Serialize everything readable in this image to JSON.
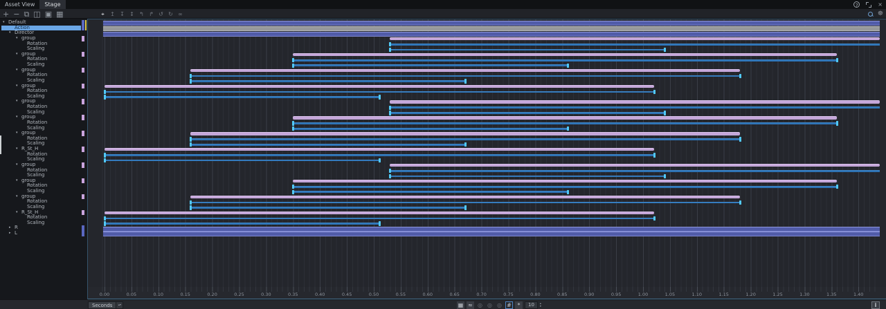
{
  "tabs": [
    {
      "label": "Asset View",
      "active": false
    },
    {
      "label": "Stage",
      "active": true
    }
  ],
  "window_controls": {
    "help": "?",
    "close": "×"
  },
  "left_toolbar": [
    {
      "name": "add-icon",
      "glyph": "+"
    },
    {
      "name": "remove-icon",
      "glyph": "−"
    },
    {
      "name": "copy-icon",
      "glyph": "⧉"
    },
    {
      "name": "paste-icon",
      "glyph": "◫"
    },
    {
      "name": "snapshot-icon",
      "glyph": "▣"
    },
    {
      "name": "film-icon",
      "glyph": "▦"
    }
  ],
  "timeline_toolbar": [
    {
      "name": "playhead-icon",
      "glyph": "⌖",
      "hot": true
    },
    {
      "name": "keyframe-insert-icon",
      "glyph": "↥"
    },
    {
      "name": "keyframe-remove-icon",
      "glyph": "↧"
    },
    {
      "name": "keyframe-move-icon",
      "glyph": "↕"
    },
    {
      "name": "shift-left-icon",
      "glyph": "↰"
    },
    {
      "name": "shift-right-icon",
      "glyph": "↱"
    },
    {
      "name": "undo-icon",
      "glyph": "↺"
    },
    {
      "name": "redo-icon",
      "glyph": "↻"
    },
    {
      "name": "loop-icon",
      "glyph": "∞"
    }
  ],
  "right_toolbar": {
    "settings_glyph": "☸"
  },
  "bottom_bar": {
    "unit_label": "Seconds",
    "fps_value": "10",
    "info_label": "i",
    "icons": [
      {
        "name": "dopesheet-icon",
        "glyph": "▦",
        "boxed": true
      },
      {
        "name": "curve-editor-icon",
        "glyph": "≈",
        "boxed": true
      },
      {
        "name": "onion-skin-1-icon",
        "glyph": "◎"
      },
      {
        "name": "onion-skin-2-icon",
        "glyph": "◎"
      },
      {
        "name": "onion-skin-3-icon",
        "glyph": "◎"
      },
      {
        "name": "snap-grid-icon",
        "glyph": "#",
        "active": true
      },
      {
        "name": "snap-magnet-icon",
        "glyph": "*",
        "boxed": true
      }
    ]
  },
  "ruler_labels": [
    "0.00",
    "0.05",
    "0.10",
    "0.15",
    "0.20",
    "0.25",
    "0.30",
    "0.35",
    "0.40",
    "0.45",
    "0.50",
    "0.55",
    "0.60",
    "0.65",
    "0.70",
    "0.75",
    "0.80",
    "0.85",
    "0.90",
    "0.95",
    "1.00",
    "1.05",
    "1.10",
    "1.15",
    "1.20",
    "1.25",
    "1.30",
    "1.35",
    "1.40"
  ],
  "ruler_step_seconds": 0.05,
  "colors": {
    "accent_blue_bar": "#515ca9",
    "gray_bar": "#96989b",
    "pink_bar": "#c4a6d9",
    "track_blue": "#2d72b4",
    "keyframe_cyan": "#52c9f5",
    "selection_blue": "#6ba7e6",
    "chip_yellow": "#e0cb4e"
  },
  "rows": [
    {
      "label": "Default",
      "level": 0,
      "arrow": "down",
      "chip": "blue",
      "chip_edge": true,
      "bar": {
        "kind": "full",
        "color": "blue"
      }
    },
    {
      "label": "Action",
      "level": 1,
      "arrow": "",
      "selected": true,
      "chip": "blue",
      "chip_edge": true,
      "bar": {
        "kind": "full",
        "color": "gray"
      }
    },
    {
      "label": "Director",
      "level": 1,
      "arrow": "down",
      "bar": {
        "kind": "full",
        "color": "blue"
      }
    },
    {
      "label": "group",
      "level": 2,
      "arrow": "down",
      "chip": "pink",
      "bar": {
        "kind": "pink",
        "start": 0.53,
        "end": 1.44
      }
    },
    {
      "label": "Rotation",
      "level": 3,
      "bar": {
        "kind": "track",
        "start": 0.53,
        "end": 1.44,
        "markers": [
          0.53
        ]
      }
    },
    {
      "label": "Scaling",
      "level": 3,
      "bar": {
        "kind": "track",
        "start": 0.53,
        "end": 1.04,
        "markers": [
          0.53,
          1.04
        ]
      }
    },
    {
      "label": "group",
      "level": 2,
      "arrow": "down",
      "chip": "pink",
      "bar": {
        "kind": "pink",
        "start": 0.35,
        "end": 1.36
      }
    },
    {
      "label": "Rotation",
      "level": 3,
      "bar": {
        "kind": "track",
        "start": 0.35,
        "end": 1.36,
        "markers": [
          0.35,
          1.36
        ]
      }
    },
    {
      "label": "Scaling",
      "level": 3,
      "bar": {
        "kind": "track",
        "start": 0.35,
        "end": 0.86,
        "markers": [
          0.35,
          0.86
        ]
      }
    },
    {
      "label": "group",
      "level": 2,
      "arrow": "down",
      "chip": "pink",
      "bar": {
        "kind": "pink",
        "start": 0.16,
        "end": 1.18
      }
    },
    {
      "label": "Rotation",
      "level": 3,
      "bar": {
        "kind": "track",
        "start": 0.16,
        "end": 1.18,
        "markers": [
          0.16,
          1.18
        ]
      }
    },
    {
      "label": "Scaling",
      "level": 3,
      "bar": {
        "kind": "track",
        "start": 0.16,
        "end": 0.67,
        "markers": [
          0.16,
          0.67
        ]
      }
    },
    {
      "label": "group",
      "level": 2,
      "arrow": "down",
      "chip": "pink",
      "bar": {
        "kind": "pink",
        "start": 0.0,
        "end": 1.02
      }
    },
    {
      "label": "Rotation",
      "level": 3,
      "bar": {
        "kind": "track",
        "start": 0.0,
        "end": 1.02,
        "markers": [
          0.0,
          1.02
        ]
      }
    },
    {
      "label": "Scaling",
      "level": 3,
      "bar": {
        "kind": "track",
        "start": 0.0,
        "end": 0.51,
        "markers": [
          0.0,
          0.51
        ]
      }
    },
    {
      "label": "group",
      "level": 2,
      "arrow": "down",
      "chip": "pink",
      "bar": {
        "kind": "pink",
        "start": 0.53,
        "end": 1.44
      }
    },
    {
      "label": "Rotation",
      "level": 3,
      "bar": {
        "kind": "track",
        "start": 0.53,
        "end": 1.44,
        "markers": [
          0.53
        ]
      }
    },
    {
      "label": "Scaling",
      "level": 3,
      "bar": {
        "kind": "track",
        "start": 0.53,
        "end": 1.04,
        "markers": [
          0.53,
          1.04
        ]
      }
    },
    {
      "label": "group",
      "level": 2,
      "arrow": "down",
      "chip": "pink",
      "bar": {
        "kind": "pink",
        "start": 0.35,
        "end": 1.36
      }
    },
    {
      "label": "Rotation",
      "level": 3,
      "bar": {
        "kind": "track",
        "start": 0.35,
        "end": 1.36,
        "markers": [
          0.35,
          1.36
        ]
      }
    },
    {
      "label": "Scaling",
      "level": 3,
      "bar": {
        "kind": "track",
        "start": 0.35,
        "end": 0.86,
        "markers": [
          0.35,
          0.86
        ]
      }
    },
    {
      "label": "group",
      "level": 2,
      "arrow": "down",
      "chip": "pink",
      "bar": {
        "kind": "pink",
        "start": 0.16,
        "end": 1.18
      }
    },
    {
      "label": "Rotation",
      "level": 3,
      "bar": {
        "kind": "track",
        "start": 0.16,
        "end": 1.18,
        "markers": [
          0.16,
          1.18
        ]
      }
    },
    {
      "label": "Scaling",
      "level": 3,
      "bar": {
        "kind": "track",
        "start": 0.16,
        "end": 0.67,
        "markers": [
          0.16,
          0.67
        ]
      }
    },
    {
      "label": "R_St_H",
      "level": 2,
      "arrow": "down",
      "chip": "pink",
      "bar": {
        "kind": "pink",
        "start": 0.0,
        "end": 1.02
      }
    },
    {
      "label": "Rotation",
      "level": 3,
      "bar": {
        "kind": "track",
        "start": 0.0,
        "end": 1.02,
        "markers": [
          0.0,
          1.02
        ]
      }
    },
    {
      "label": "Scaling",
      "level": 3,
      "bar": {
        "kind": "track",
        "start": 0.0,
        "end": 0.51,
        "markers": [
          0.0,
          0.51
        ]
      }
    },
    {
      "label": "group",
      "level": 2,
      "arrow": "down",
      "chip": "pink",
      "bar": {
        "kind": "pink",
        "start": 0.53,
        "end": 1.44
      }
    },
    {
      "label": "Rotation",
      "level": 3,
      "bar": {
        "kind": "track",
        "start": 0.53,
        "end": 1.44,
        "markers": [
          0.53
        ]
      }
    },
    {
      "label": "Scaling",
      "level": 3,
      "bar": {
        "kind": "track",
        "start": 0.53,
        "end": 1.04,
        "markers": [
          0.53,
          1.04
        ]
      }
    },
    {
      "label": "group",
      "level": 2,
      "arrow": "down",
      "chip": "pink",
      "bar": {
        "kind": "pink",
        "start": 0.35,
        "end": 1.36
      }
    },
    {
      "label": "Rotation",
      "level": 3,
      "bar": {
        "kind": "track",
        "start": 0.35,
        "end": 1.36,
        "markers": [
          0.35,
          1.36
        ]
      }
    },
    {
      "label": "Scaling",
      "level": 3,
      "bar": {
        "kind": "track",
        "start": 0.35,
        "end": 0.86,
        "markers": [
          0.35,
          0.86
        ]
      }
    },
    {
      "label": "group",
      "level": 2,
      "arrow": "down",
      "chip": "pink",
      "bar": {
        "kind": "pink",
        "start": 0.16,
        "end": 1.18
      }
    },
    {
      "label": "Rotation",
      "level": 3,
      "bar": {
        "kind": "track",
        "start": 0.16,
        "end": 1.18,
        "markers": [
          0.16,
          1.18
        ]
      }
    },
    {
      "label": "Scaling",
      "level": 3,
      "bar": {
        "kind": "track",
        "start": 0.16,
        "end": 0.67,
        "markers": [
          0.16,
          0.67
        ]
      }
    },
    {
      "label": "R_St_H",
      "level": 2,
      "arrow": "down",
      "chip": "pink",
      "bar": {
        "kind": "pink",
        "start": 0.0,
        "end": 1.02
      }
    },
    {
      "label": "Rotation",
      "level": 3,
      "bar": {
        "kind": "track",
        "start": 0.0,
        "end": 1.02,
        "markers": [
          0.0,
          1.02
        ]
      }
    },
    {
      "label": "Scaling",
      "level": 3,
      "bar": {
        "kind": "track",
        "start": 0.0,
        "end": 0.51,
        "markers": [
          0.0,
          0.51
        ]
      }
    },
    {
      "label": "R",
      "level": 1,
      "arrow": "right",
      "chip": "blue",
      "bar": {
        "kind": "full",
        "color": "blue"
      }
    },
    {
      "label": "L",
      "level": 1,
      "arrow": "right",
      "chip": "blue",
      "bar": {
        "kind": "full",
        "color": "blue"
      }
    }
  ]
}
